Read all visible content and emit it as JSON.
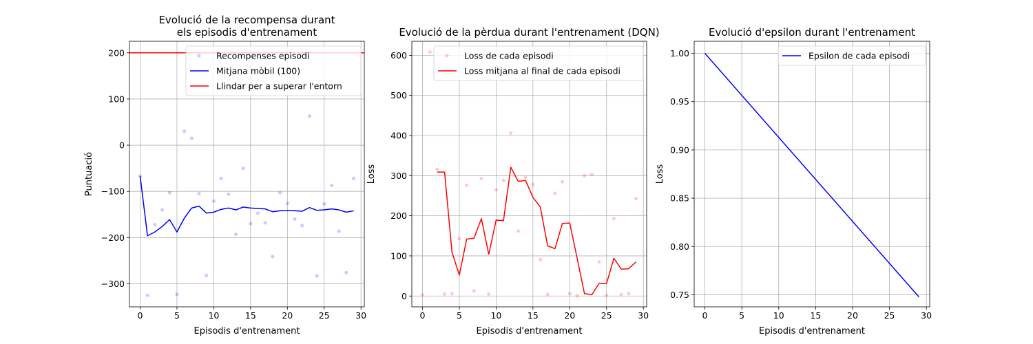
{
  "chart_data": [
    {
      "type": "line",
      "title": "Evolució de la recompensa durant\nels episodis d'entrenament",
      "xlabel": "Episodis d'entrenament",
      "ylabel": "Puntuació",
      "xlim": [
        -1.45,
        30.45
      ],
      "ylim": [
        -350,
        225
      ],
      "xticks": [
        0,
        5,
        10,
        15,
        20,
        25,
        30
      ],
      "yticks": [
        -300,
        -200,
        -100,
        0,
        100,
        200
      ],
      "grid": true,
      "legend_position": "top-right",
      "hline": {
        "name": "Llindar per a superar l'entorn",
        "y": 200,
        "color": "#ff0000"
      },
      "series": [
        {
          "name": "Recompenses episodi",
          "kind": "scatter",
          "color": "#0000ff",
          "alpha": 0.2,
          "x": [
            0,
            1,
            2,
            3,
            4,
            5,
            6,
            7,
            8,
            9,
            10,
            11,
            12,
            13,
            14,
            15,
            16,
            17,
            18,
            19,
            20,
            21,
            22,
            23,
            24,
            25,
            26,
            27,
            28,
            29
          ],
          "y": [
            -67,
            -325,
            -172,
            -140,
            -103,
            -323,
            30,
            15,
            -105,
            -282,
            -121,
            -72,
            -106,
            -193,
            -50,
            -170,
            -147,
            -168,
            -241,
            -103,
            -126,
            -160,
            -174,
            63,
            -283,
            -127,
            -87,
            -186,
            -276,
            -72
          ]
        },
        {
          "name": "Mitjana mòbil (100)",
          "kind": "line",
          "color": "#0000ff",
          "x": [
            0,
            1,
            2,
            3,
            4,
            5,
            6,
            7,
            8,
            9,
            10,
            11,
            12,
            13,
            14,
            15,
            16,
            17,
            18,
            19,
            20,
            21,
            22,
            23,
            24,
            25,
            26,
            27,
            28,
            29
          ],
          "y": [
            -67,
            -196,
            -188,
            -176,
            -161,
            -188,
            -158,
            -136,
            -132,
            -147,
            -145,
            -139,
            -136,
            -140,
            -134,
            -136,
            -137,
            -138,
            -144,
            -142,
            -141,
            -142,
            -143,
            -135,
            -141,
            -140,
            -138,
            -140,
            -145,
            -142
          ]
        }
      ]
    },
    {
      "type": "line",
      "title": "Evolució de la pèrdua durant l'entrenament (DQN)",
      "xlabel": "Episodis d'entrenament",
      "ylabel": "Loss",
      "xlim": [
        -1.45,
        30.45
      ],
      "ylim": [
        -27,
        635
      ],
      "xticks": [
        0,
        5,
        10,
        15,
        20,
        25,
        30
      ],
      "yticks": [
        0,
        100,
        200,
        300,
        400,
        500,
        600
      ],
      "grid": true,
      "legend_position": "top-right",
      "series": [
        {
          "name": "Loss de cada episodi",
          "kind": "scatter",
          "color": "#ff0000",
          "alpha": 0.2,
          "x": [
            0,
            1,
            2,
            3,
            4,
            5,
            6,
            7,
            8,
            9,
            10,
            11,
            12,
            13,
            14,
            15,
            16,
            17,
            18,
            19,
            20,
            21,
            22,
            23,
            24,
            25,
            26,
            27,
            28,
            29
          ],
          "y": [
            3,
            608,
            316,
            5,
            6,
            143,
            276,
            13,
            293,
            5,
            265,
            288,
            406,
            162,
            295,
            278,
            91,
            4,
            256,
            285,
            6,
            1,
            300,
            303,
            85,
            2,
            193,
            4,
            6,
            243
          ]
        },
        {
          "name": "Loss mitjana al final de cada episodi",
          "kind": "line",
          "color": "#ff0000",
          "x": [
            2,
            3,
            4,
            5,
            6,
            7,
            8,
            9,
            10,
            11,
            12,
            13,
            14,
            15,
            16,
            17,
            18,
            19,
            20,
            21,
            22,
            23,
            24,
            25,
            26,
            27,
            28,
            29
          ],
          "y": [
            309,
            309,
            110,
            52,
            142,
            144,
            193,
            104,
            189,
            188,
            321,
            286,
            288,
            246,
            222,
            125,
            118,
            181,
            182,
            95,
            6,
            3,
            32,
            31,
            94,
            67,
            68,
            85
          ]
        }
      ]
    },
    {
      "type": "line",
      "title": "Evolució d'epsilon durant l'entrenament",
      "xlabel": "Episodis d'entrenament",
      "ylabel": "Loss",
      "xlim": [
        -1.45,
        30.45
      ],
      "ylim": [
        0.7375,
        1.0125
      ],
      "xticks": [
        0,
        5,
        10,
        15,
        20,
        25,
        30
      ],
      "yticks": [
        0.75,
        0.8,
        0.85,
        0.9,
        0.95,
        1.0
      ],
      "ytick_decimals": 2,
      "grid": true,
      "legend_position": "top-right",
      "series": [
        {
          "name": "Epsilon de cada episodi",
          "kind": "line",
          "color": "#0000ff",
          "x": [
            0,
            29
          ],
          "y": [
            1.0,
            0.7477
          ]
        }
      ]
    }
  ]
}
